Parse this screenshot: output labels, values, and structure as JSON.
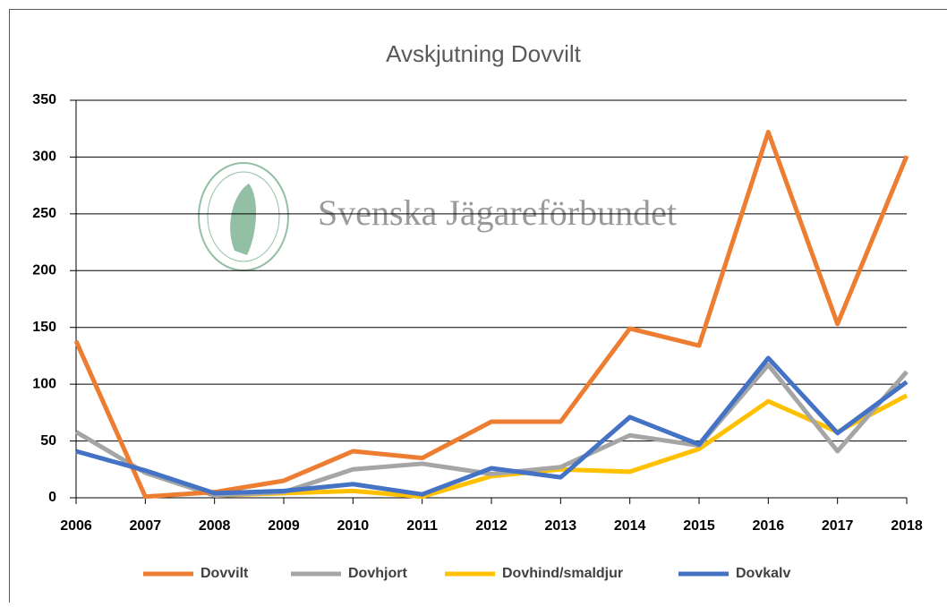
{
  "chart_data": {
    "type": "line",
    "title": "Avskjutning Dovvilt",
    "watermark": "Svenska Jägareförbundet",
    "categories": [
      "2006",
      "2007",
      "2008",
      "2009",
      "2010",
      "2011",
      "2012",
      "2013",
      "2014",
      "2015",
      "2016",
      "2017",
      "2018"
    ],
    "series": [
      {
        "name": "Dovvilt",
        "color": "#ed7d31",
        "values": [
          138,
          1,
          5,
          15,
          41,
          35,
          67,
          67,
          149,
          134,
          322,
          153,
          301
        ]
      },
      {
        "name": "Dovhjort",
        "color": "#a5a5a5",
        "values": [
          58,
          22,
          2,
          5,
          25,
          30,
          21,
          27,
          55,
          46,
          117,
          41,
          111
        ]
      },
      {
        "name": "Dovhind/smaldjur",
        "color": "#ffc000",
        "values": [
          null,
          null,
          2,
          4,
          6,
          1,
          19,
          25,
          23,
          43,
          85,
          58,
          90
        ]
      },
      {
        "name": "Dovkalv",
        "color": "#4472c4",
        "values": [
          41,
          24,
          4,
          6,
          12,
          3,
          26,
          18,
          71,
          47,
          123,
          57,
          102
        ]
      }
    ],
    "ylim": [
      0,
      350
    ],
    "yticks": [
      0,
      50,
      100,
      150,
      200,
      250,
      300,
      350
    ],
    "grid": true,
    "legend": "bottom"
  }
}
